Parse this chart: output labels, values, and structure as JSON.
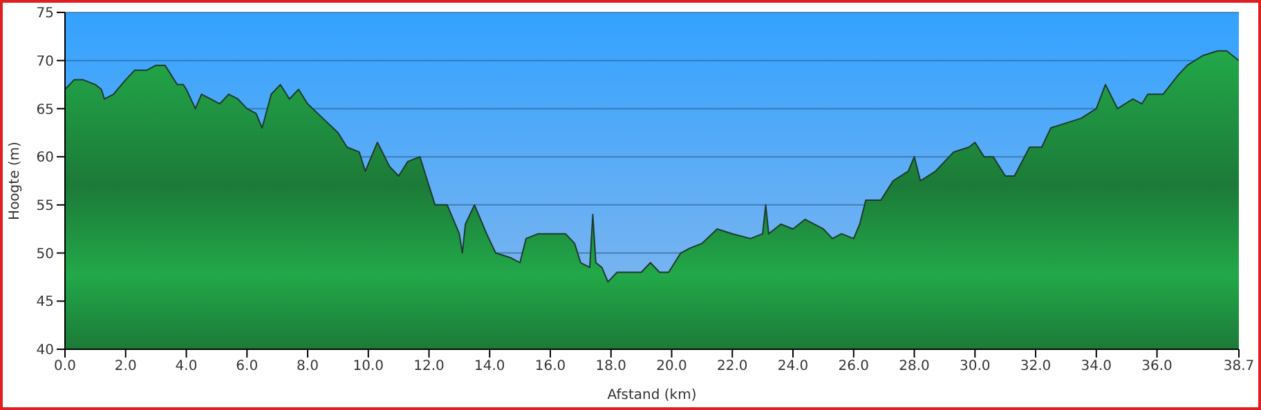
{
  "chart_data": {
    "type": "area",
    "xlabel": "Afstand   (km)",
    "ylabel": "Hoogte (m)",
    "x": [
      0,
      0.3,
      0.6,
      1.0,
      1.2,
      1.3,
      1.6,
      2.0,
      2.3,
      2.7,
      3.0,
      3.3,
      3.5,
      3.7,
      3.9,
      4.0,
      4.3,
      4.5,
      4.8,
      5.1,
      5.4,
      5.7,
      6.0,
      6.3,
      6.5,
      6.8,
      7.1,
      7.4,
      7.7,
      8.0,
      8.5,
      9.0,
      9.3,
      9.7,
      9.9,
      10.3,
      10.7,
      11.0,
      11.3,
      11.7,
      11.9,
      12.2,
      12.6,
      13.0,
      13.1,
      13.2,
      13.5,
      13.9,
      14.2,
      14.7,
      15.0,
      15.2,
      15.6,
      16.0,
      16.5,
      16.8,
      17.0,
      17.3,
      17.4,
      17.5,
      17.7,
      17.9,
      18.2,
      18.6,
      19.0,
      19.3,
      19.6,
      19.9,
      20.3,
      20.6,
      21.0,
      21.5,
      22.0,
      22.6,
      23.0,
      23.1,
      23.2,
      23.6,
      24.0,
      24.4,
      25.0,
      25.3,
      25.6,
      26.0,
      26.2,
      26.4,
      26.9,
      27.3,
      27.8,
      28.0,
      28.2,
      28.7,
      29.3,
      29.8,
      30.0,
      30.3,
      30.6,
      31.0,
      31.3,
      31.8,
      32.2,
      32.5,
      33.0,
      33.5,
      34.0,
      34.3,
      34.7,
      35.2,
      35.5,
      35.7,
      36.2,
      36.7,
      37.0,
      37.5,
      38.0,
      38.3,
      38.5,
      38.7
    ],
    "series": [
      {
        "color": "#22a849",
        "values": [
          67,
          68,
          68,
          67.5,
          67,
          66,
          66.5,
          68,
          69,
          69,
          69.5,
          69.5,
          68.5,
          67.5,
          67.5,
          67,
          65,
          66.5,
          66,
          65.5,
          66.5,
          66,
          65,
          64.5,
          63,
          66.5,
          67.5,
          66,
          67,
          65.5,
          64,
          62.5,
          61,
          60.5,
          58.5,
          61.5,
          59,
          58,
          59.5,
          60,
          58,
          55,
          55,
          52,
          50,
          53,
          55,
          52,
          50,
          49.5,
          49,
          51.5,
          52,
          52,
          52,
          51,
          49,
          48.5,
          54,
          49,
          48.5,
          47,
          48,
          48,
          48,
          49,
          48,
          48,
          50,
          50.5,
          51,
          52.5,
          52,
          51.5,
          52,
          55,
          52,
          53,
          52.5,
          53.5,
          52.5,
          51.5,
          52,
          51.5,
          53,
          55.5,
          55.5,
          57.5,
          58.5,
          60,
          57.5,
          58.5,
          60.5,
          61,
          61.5,
          60,
          60,
          58,
          58,
          61,
          61,
          63,
          63.5,
          64,
          65,
          67.5,
          65,
          66,
          65.5,
          66.5,
          66.5,
          68.5,
          69.5,
          70.5,
          71,
          71,
          70.5,
          70
        ]
      }
    ],
    "xlim": [
      0,
      38.7
    ],
    "ylim": [
      40,
      75
    ],
    "xticks": [
      {
        "value": 0,
        "label": "0.0"
      },
      {
        "value": 2,
        "label": "2.0"
      },
      {
        "value": 4,
        "label": "4.0"
      },
      {
        "value": 6,
        "label": "6.0"
      },
      {
        "value": 8,
        "label": "8.0"
      },
      {
        "value": 10,
        "label": "10.0"
      },
      {
        "value": 12,
        "label": "12.0"
      },
      {
        "value": 14,
        "label": "14.0"
      },
      {
        "value": 16,
        "label": "16.0"
      },
      {
        "value": 18,
        "label": "18.0"
      },
      {
        "value": 20,
        "label": "20.0"
      },
      {
        "value": 22,
        "label": "22.0"
      },
      {
        "value": 24,
        "label": "24.0"
      },
      {
        "value": 26,
        "label": "26.0"
      },
      {
        "value": 28,
        "label": "28.0"
      },
      {
        "value": 30,
        "label": "30.0"
      },
      {
        "value": 32,
        "label": "32.0"
      },
      {
        "value": 34,
        "label": "34.0"
      },
      {
        "value": 36,
        "label": "36.0"
      },
      {
        "value": 38.7,
        "label": "38.7"
      }
    ],
    "yticks": [
      40,
      45,
      50,
      55,
      60,
      65,
      70,
      75
    ],
    "grid": "y",
    "legend": false
  }
}
